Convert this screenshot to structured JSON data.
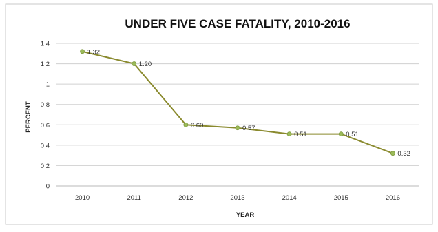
{
  "chart_data": {
    "type": "line",
    "title": "UNDER FIVE CASE FATALITY, 2010-2016",
    "xlabel": "YEAR",
    "ylabel": "PERCENT",
    "categories": [
      "2010",
      "2011",
      "2012",
      "2013",
      "2014",
      "2015",
      "2016"
    ],
    "series": [
      {
        "values": [
          1.32,
          1.2,
          0.6,
          0.57,
          0.51,
          0.51,
          0.32
        ],
        "data_labels": [
          "1.32",
          "1.20",
          "0.60",
          "0.57",
          "0.51",
          "0.51",
          "0.32"
        ]
      }
    ],
    "ylim": [
      0,
      1.4
    ],
    "yticks": [
      "0",
      "0.2",
      "0.4",
      "0.6",
      "0.8",
      "1",
      "1.2",
      "1.4"
    ],
    "grid": true,
    "legend": "none",
    "colors": {
      "line": "#8a8a2e",
      "marker": "#9bbb59",
      "grid": "#d0d0d0",
      "border": "#c8c8c8"
    }
  }
}
